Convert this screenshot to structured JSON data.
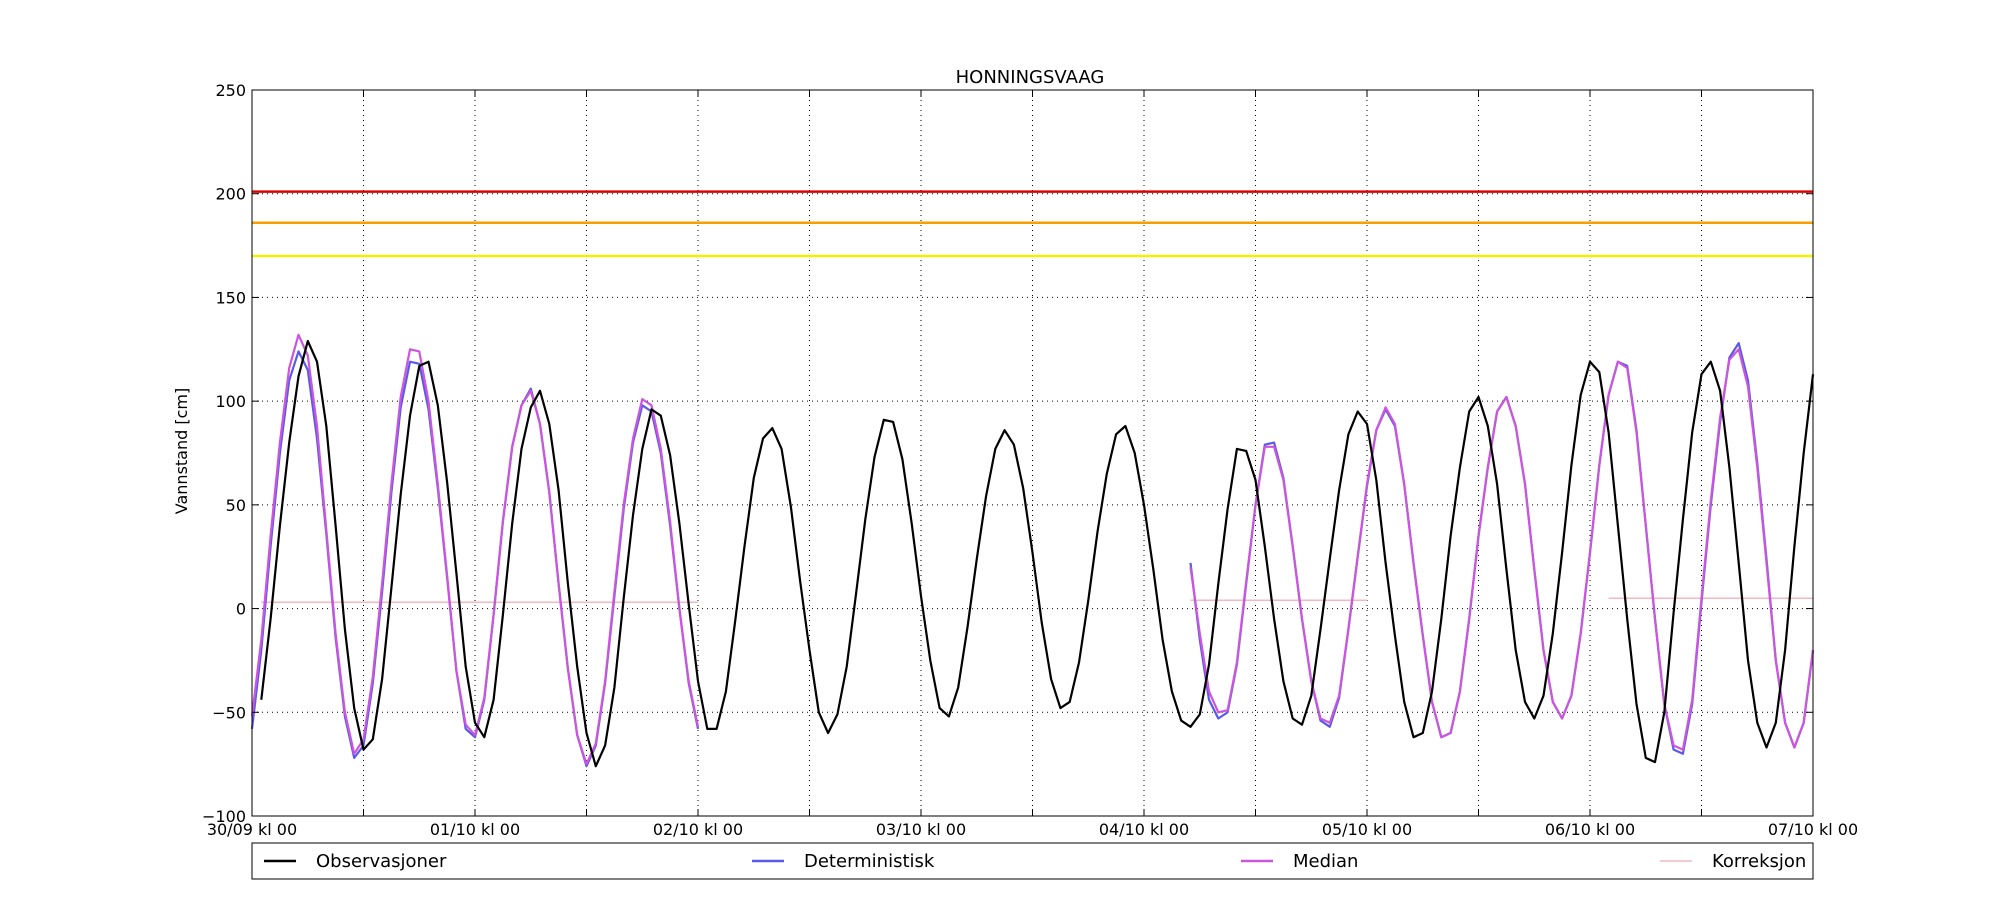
{
  "chart_data": {
    "type": "line",
    "title": "HONNINGSVAAG",
    "xlabel": "",
    "ylabel": "Vannstand [cm]",
    "ylim": [
      -100,
      250
    ],
    "yticks": [
      -100,
      -50,
      0,
      50,
      100,
      150,
      200,
      250
    ],
    "xlim_hours": [
      0,
      168
    ],
    "xtick_labels": [
      "30/09 kl 00",
      "01/10 kl 00",
      "02/10 kl 00",
      "03/10 kl 00",
      "04/10 kl 00",
      "05/10 kl 00",
      "06/10 kl 00",
      "07/10 kl 00"
    ],
    "grid": true,
    "legend_position": "bottom",
    "thresholds": [
      {
        "value": 201,
        "color": "#dd0000"
      },
      {
        "value": 186,
        "color": "#f5a000"
      },
      {
        "value": 170,
        "color": "#f2f200"
      }
    ],
    "series": [
      {
        "name": "Observasjoner",
        "color": "#000000",
        "x": [
          1,
          2,
          3,
          4,
          5,
          6,
          7,
          8,
          9,
          10,
          11,
          12,
          13,
          14,
          15,
          16,
          17,
          18,
          19,
          20,
          21,
          22,
          23,
          24,
          25,
          26,
          27,
          28,
          29,
          30,
          31,
          32,
          33,
          34,
          35,
          36,
          37,
          38,
          39,
          40,
          41,
          42,
          43,
          44,
          45,
          46,
          47,
          48,
          49,
          50,
          51,
          52,
          53,
          54,
          55,
          56,
          57,
          58,
          59,
          60,
          61,
          62,
          63,
          64,
          65,
          66,
          67,
          68,
          69,
          70,
          71,
          72,
          73,
          74,
          75,
          76,
          77,
          78,
          79,
          80,
          81,
          82,
          83,
          84,
          85,
          86,
          87,
          88,
          89,
          90,
          91,
          92,
          93,
          94,
          95,
          96,
          97,
          98,
          99,
          100,
          101,
          102,
          103,
          104,
          105,
          106,
          107,
          108,
          109,
          110,
          111,
          112,
          113,
          114,
          115,
          116,
          117,
          118,
          119,
          120,
          121,
          122,
          123,
          124,
          125,
          126,
          127,
          128,
          129,
          130,
          131,
          132,
          133,
          134,
          135,
          136,
          137,
          138,
          139,
          140,
          141,
          142,
          143,
          144,
          145,
          146,
          147,
          148,
          149,
          150,
          151,
          152,
          153,
          154,
          155,
          156,
          157,
          158,
          159,
          160,
          161,
          162,
          163,
          164,
          165,
          166,
          167,
          168
        ],
        "y": [
          -44,
          -5,
          40,
          80,
          112,
          129,
          119,
          88,
          40,
          -10,
          -48,
          -68,
          -63,
          -34,
          10,
          55,
          93,
          117,
          119,
          98,
          61,
          17,
          -28,
          -55,
          -62,
          -44,
          -3,
          41,
          77,
          97,
          105,
          89,
          57,
          12,
          -28,
          -60,
          -76,
          -66,
          -38,
          5,
          45,
          77,
          96,
          93,
          74,
          41,
          2,
          -35,
          -58,
          -58,
          -40,
          -6,
          30,
          63,
          82,
          87,
          77,
          49,
          13,
          -20,
          -50,
          -60,
          -51,
          -28,
          7,
          43,
          73,
          91,
          90,
          72,
          41,
          6,
          -25,
          -48,
          -52,
          -38,
          -9,
          24,
          54,
          77,
          86,
          79,
          58,
          27,
          -7,
          -34,
          -48,
          -45,
          -26,
          4,
          37,
          65,
          84,
          88,
          75,
          50,
          19,
          -15,
          -40,
          -54,
          -57,
          -51,
          -27,
          12,
          48,
          77,
          76,
          62,
          30,
          -5,
          -35,
          -53,
          -56,
          -42,
          -10,
          24,
          57,
          84,
          95,
          89,
          62,
          22,
          -13,
          -45,
          -62,
          -60,
          -40,
          -5,
          35,
          68,
          95,
          102,
          88,
          60,
          19,
          -20,
          -45,
          -53,
          -42,
          -12,
          27,
          69,
          103,
          119,
          114,
          85,
          40,
          -5,
          -46,
          -72,
          -74,
          -50,
          -2,
          43,
          85,
          113,
          119,
          105,
          68,
          22,
          -25,
          -55,
          -67,
          -55,
          -20,
          30,
          75,
          113
        ]
      },
      {
        "name": "Deterministisk",
        "color": "#5a5ae6",
        "segments": [
          {
            "x": [
              0,
              1,
              2,
              3,
              4,
              5,
              6,
              7,
              8,
              9,
              10,
              11,
              12,
              13,
              14,
              15,
              16,
              17,
              18,
              19,
              20,
              21,
              22,
              23,
              24,
              25,
              26,
              27,
              28,
              29,
              30,
              31,
              32,
              33,
              34,
              35,
              36,
              37,
              38,
              39,
              40,
              41,
              42,
              43,
              44,
              45,
              46,
              47,
              48
            ],
            "y": [
              -58,
              -20,
              30,
              75,
              110,
              124,
              115,
              82,
              36,
              -14,
              -52,
              -72,
              -66,
              -36,
              8,
              56,
              97,
              119,
              118,
              96,
              58,
              15,
              -30,
              -58,
              -62,
              -44,
              -3,
              42,
              78,
              98,
              106,
              89,
              56,
              12,
              -29,
              -61,
              -76,
              -66,
              -36,
              6,
              48,
              80,
              98,
              95,
              75,
              40,
              0,
              -36,
              -58
            ]
          },
          {
            "x": [
              101,
              102,
              103,
              104,
              105,
              106,
              107,
              108,
              109,
              110,
              111,
              112,
              113,
              114,
              115,
              116,
              117,
              118,
              119,
              120,
              121,
              122,
              123,
              124,
              125,
              126,
              127,
              128,
              129,
              130,
              131,
              132,
              133,
              134,
              135,
              136,
              137,
              138,
              139,
              140,
              141,
              142,
              143,
              144,
              145,
              146,
              147,
              148,
              149,
              150,
              151,
              152,
              153,
              154,
              155,
              156,
              157,
              158,
              159,
              160,
              161,
              162,
              163,
              164,
              165,
              166,
              167,
              168
            ],
            "y": [
              22,
              -15,
              -44,
              -53,
              -50,
              -27,
              12,
              50,
              79,
              80,
              63,
              30,
              -5,
              -35,
              -54,
              -57,
              -43,
              -10,
              25,
              59,
              86,
              96,
              88,
              60,
              22,
              -13,
              -45,
              -62,
              -60,
              -40,
              -5,
              35,
              68,
              95,
              102,
              88,
              60,
              19,
              -20,
              -45,
              -53,
              -42,
              -12,
              27,
              69,
              103,
              119,
              117,
              86,
              40,
              -5,
              -46,
              -68,
              -70,
              -46,
              3,
              50,
              90,
              121,
              128,
              110,
              70,
              24,
              -25,
              -55,
              -67,
              -55,
              -20
            ]
          }
        ]
      },
      {
        "name": "Median",
        "color": "#cc55dd",
        "segments": [
          {
            "x": [
              0,
              1,
              2,
              3,
              4,
              5,
              6,
              7,
              8,
              9,
              10,
              11,
              12,
              13,
              14,
              15,
              16,
              17,
              18,
              19,
              20,
              21,
              22,
              23,
              24,
              25,
              26,
              27,
              28,
              29,
              30,
              31,
              32,
              33,
              34,
              35,
              36,
              37,
              38,
              39,
              40,
              41,
              42,
              43,
              44,
              45,
              46,
              47,
              48
            ],
            "y": [
              -52,
              -15,
              35,
              80,
              116,
              132,
              122,
              88,
              38,
              -12,
              -50,
              -70,
              -63,
              -33,
              12,
              60,
              102,
              125,
              124,
              100,
              60,
              16,
              -30,
              -56,
              -61,
              -43,
              -3,
              42,
              78,
              98,
              105,
              89,
              56,
              12,
              -29,
              -61,
              -75,
              -65,
              -35,
              8,
              50,
              82,
              101,
              98,
              77,
              42,
              0,
              -35,
              -57
            ]
          },
          {
            "x": [
              101,
              102,
              103,
              104,
              105,
              106,
              107,
              108,
              109,
              110,
              111,
              112,
              113,
              114,
              115,
              116,
              117,
              118,
              119,
              120,
              121,
              122,
              123,
              124,
              125,
              126,
              127,
              128,
              129,
              130,
              131,
              132,
              133,
              134,
              135,
              136,
              137,
              138,
              139,
              140,
              141,
              142,
              143,
              144,
              145,
              146,
              147,
              148,
              149,
              150,
              151,
              152,
              153,
              154,
              155,
              156,
              157,
              158,
              159,
              160,
              161,
              162,
              163,
              164,
              165,
              166,
              167,
              168
            ],
            "y": [
              20,
              -12,
              -40,
              -50,
              -49,
              -26,
              13,
              50,
              78,
              78,
              62,
              30,
              -5,
              -35,
              -53,
              -55,
              -42,
              -10,
              25,
              60,
              86,
              97,
              89,
              60,
              22,
              -13,
              -45,
              -62,
              -60,
              -40,
              -5,
              35,
              68,
              95,
              102,
              88,
              60,
              19,
              -20,
              -45,
              -53,
              -42,
              -12,
              27,
              69,
              103,
              119,
              116,
              85,
              40,
              -5,
              -46,
              -66,
              -68,
              -44,
              5,
              52,
              92,
              120,
              125,
              107,
              68,
              22,
              -25,
              -55,
              -67,
              -55,
              -20
            ]
          }
        ]
      },
      {
        "name": "Korreksjon",
        "color": "#f2b8c0",
        "segments": [
          {
            "x": [
              1,
              48
            ],
            "y": [
              3,
              3
            ]
          },
          {
            "x": [
              101,
              120
            ],
            "y": [
              4,
              4
            ]
          },
          {
            "x": [
              146,
              168
            ],
            "y": [
              5,
              5
            ]
          }
        ]
      }
    ]
  }
}
